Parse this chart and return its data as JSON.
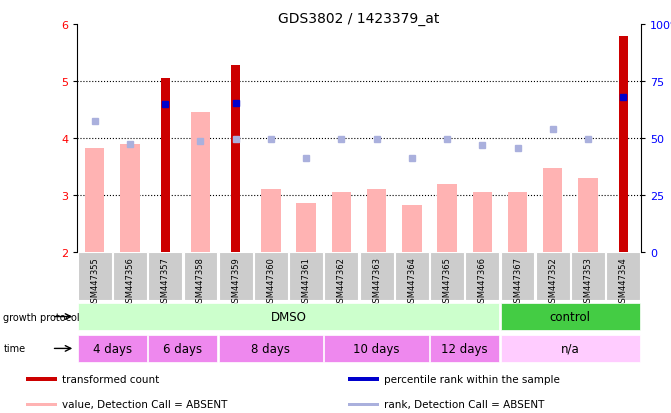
{
  "title": "GDS3802 / 1423379_at",
  "samples": [
    "GSM447355",
    "GSM447356",
    "GSM447357",
    "GSM447358",
    "GSM447359",
    "GSM447360",
    "GSM447361",
    "GSM447362",
    "GSM447363",
    "GSM447364",
    "GSM447365",
    "GSM447366",
    "GSM447367",
    "GSM447352",
    "GSM447353",
    "GSM447354"
  ],
  "transformed_count": [
    null,
    null,
    5.05,
    null,
    5.28,
    null,
    null,
    null,
    null,
    null,
    null,
    null,
    null,
    null,
    null,
    5.78
  ],
  "percentile_rank": [
    null,
    null,
    4.6,
    null,
    4.62,
    null,
    null,
    null,
    null,
    null,
    null,
    null,
    null,
    null,
    null,
    4.72
  ],
  "value_absent": [
    3.82,
    3.9,
    null,
    4.45,
    null,
    3.1,
    2.85,
    3.05,
    3.1,
    2.82,
    3.2,
    3.05,
    3.05,
    3.48,
    3.3,
    null
  ],
  "rank_absent": [
    4.3,
    3.9,
    null,
    3.95,
    3.98,
    3.98,
    3.65,
    3.98,
    3.98,
    3.65,
    3.98,
    3.88,
    3.82,
    4.15,
    3.98,
    null
  ],
  "ylim": [
    2,
    6
  ],
  "yticks": [
    2,
    3,
    4,
    5,
    6
  ],
  "bar_color_dark": "#cc0000",
  "bar_color_light": "#ffb3b3",
  "dot_color_dark": "#0000cc",
  "dot_color_light": "#aab0dd",
  "protocol_dmso_color": "#ccffcc",
  "protocol_control_color": "#44cc44",
  "time_color": "#ee88ee",
  "time_na_color": "#ffccff",
  "sample_label_bg": "#cccccc",
  "growth_protocol_label": "growth protocol",
  "time_label": "time",
  "time_groups": [
    {
      "label": "4 days",
      "start": 0,
      "end": 1
    },
    {
      "label": "6 days",
      "start": 2,
      "end": 3
    },
    {
      "label": "8 days",
      "start": 4,
      "end": 6
    },
    {
      "label": "10 days",
      "start": 7,
      "end": 9
    },
    {
      "label": "12 days",
      "start": 10,
      "end": 11
    },
    {
      "label": "n/a",
      "start": 12,
      "end": 15
    }
  ],
  "protocol_groups": [
    {
      "label": "DMSO",
      "start": 0,
      "end": 11
    },
    {
      "label": "control",
      "start": 12,
      "end": 15
    }
  ],
  "legend_items": [
    {
      "label": "transformed count",
      "color": "#cc0000"
    },
    {
      "label": "percentile rank within the sample",
      "color": "#0000cc"
    },
    {
      "label": "value, Detection Call = ABSENT",
      "color": "#ffb3b3"
    },
    {
      "label": "rank, Detection Call = ABSENT",
      "color": "#aab0dd"
    }
  ]
}
